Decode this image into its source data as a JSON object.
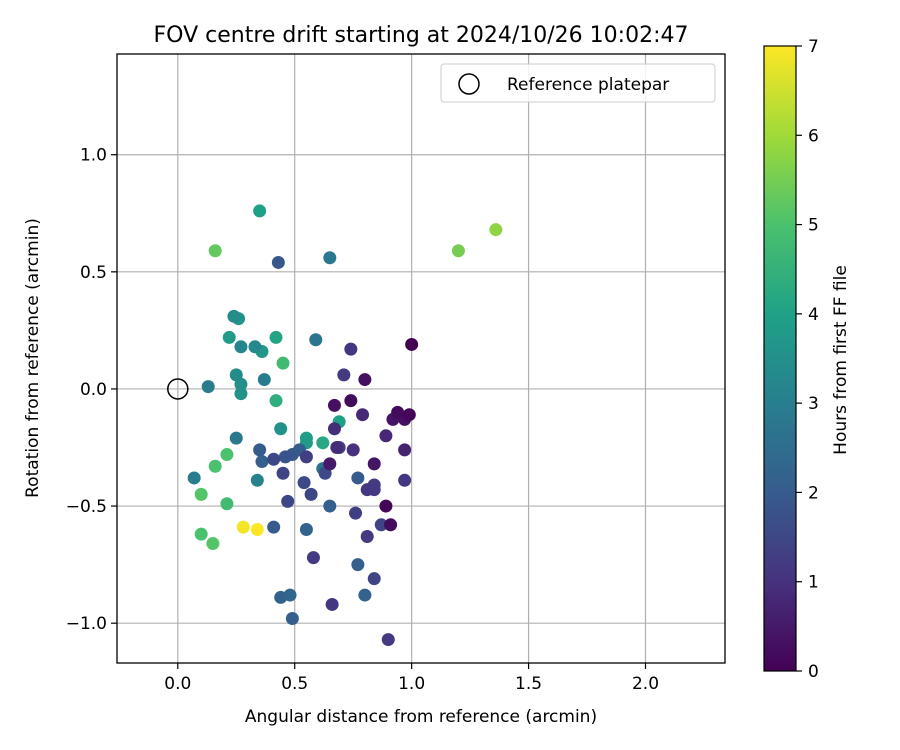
{
  "chart_data": {
    "type": "scatter",
    "title": "FOV centre drift starting at 2024/10/26 10:02:47",
    "xlabel": "Angular distance from reference (arcmin)",
    "ylabel": "Rotation from reference (arcmin)",
    "xlim": [
      -0.26,
      2.34
    ],
    "ylim": [
      -1.17,
      1.43
    ],
    "xticks": [
      0.0,
      0.5,
      1.0,
      1.5,
      2.0
    ],
    "xtick_labels": [
      "0.0",
      "0.5",
      "1.0",
      "1.5",
      "2.0"
    ],
    "yticks": [
      -1.0,
      -0.5,
      0.0,
      0.5,
      1.0
    ],
    "ytick_labels": [
      "−1.0",
      "−0.5",
      "0.0",
      "0.5",
      "1.0"
    ],
    "grid": true,
    "legend": {
      "position": "top-right",
      "entries": [
        {
          "label": "Reference platepar",
          "marker": "open-circle",
          "x": 0.0,
          "y": 0.0
        }
      ]
    },
    "colorbar": {
      "label": "Hours from first FF file",
      "colormap": "viridis",
      "range": [
        0,
        7
      ],
      "ticks": [
        0,
        1,
        2,
        3,
        4,
        5,
        6,
        7
      ],
      "tick_labels": [
        "0",
        "1",
        "2",
        "3",
        "4",
        "5",
        "6",
        "7"
      ]
    },
    "points": [
      {
        "x": 1.0,
        "y": 0.19,
        "c": 0.0
      },
      {
        "x": 0.99,
        "y": -0.11,
        "c": 0.1
      },
      {
        "x": 0.94,
        "y": -0.1,
        "c": 0.2
      },
      {
        "x": 0.97,
        "y": -0.13,
        "c": 0.3
      },
      {
        "x": 0.92,
        "y": -0.13,
        "c": 0.4
      },
      {
        "x": 0.89,
        "y": -0.5,
        "c": 0.1
      },
      {
        "x": 0.91,
        "y": -0.58,
        "c": 0.2
      },
      {
        "x": 0.8,
        "y": 0.04,
        "c": 0.3
      },
      {
        "x": 0.74,
        "y": -0.05,
        "c": 0.2
      },
      {
        "x": 0.67,
        "y": -0.07,
        "c": 0.3
      },
      {
        "x": 0.84,
        "y": -0.32,
        "c": 0.4
      },
      {
        "x": 0.65,
        "y": -0.32,
        "c": 0.5
      },
      {
        "x": 0.97,
        "y": -0.26,
        "c": 0.7
      },
      {
        "x": 0.89,
        "y": -0.2,
        "c": 0.8
      },
      {
        "x": 0.79,
        "y": -0.11,
        "c": 0.8
      },
      {
        "x": 0.67,
        "y": -0.17,
        "c": 0.9
      },
      {
        "x": 0.68,
        "y": -0.25,
        "c": 0.9
      },
      {
        "x": 0.75,
        "y": -0.26,
        "c": 1.0
      },
      {
        "x": 0.74,
        "y": 0.17,
        "c": 1.1
      },
      {
        "x": 0.71,
        "y": 0.06,
        "c": 1.2
      },
      {
        "x": 0.97,
        "y": -0.39,
        "c": 1.1
      },
      {
        "x": 0.84,
        "y": -0.41,
        "c": 1.2
      },
      {
        "x": 0.81,
        "y": -0.43,
        "c": 1.1
      },
      {
        "x": 0.84,
        "y": -0.43,
        "c": 1.2
      },
      {
        "x": 0.87,
        "y": -0.58,
        "c": 1.4
      },
      {
        "x": 0.76,
        "y": -0.53,
        "c": 1.3
      },
      {
        "x": 0.81,
        "y": -0.63,
        "c": 1.2
      },
      {
        "x": 0.84,
        "y": -0.81,
        "c": 1.4
      },
      {
        "x": 0.9,
        "y": -1.07,
        "c": 1.2
      },
      {
        "x": 0.66,
        "y": -0.92,
        "c": 1.1
      },
      {
        "x": 0.58,
        "y": -0.72,
        "c": 1.2
      },
      {
        "x": 0.55,
        "y": -0.29,
        "c": 1.3
      },
      {
        "x": 0.69,
        "y": -0.25,
        "c": 1.4
      },
      {
        "x": 0.57,
        "y": -0.45,
        "c": 1.5
      },
      {
        "x": 0.47,
        "y": -0.48,
        "c": 1.5
      },
      {
        "x": 0.45,
        "y": -0.36,
        "c": 1.4
      },
      {
        "x": 0.41,
        "y": -0.3,
        "c": 1.5
      },
      {
        "x": 0.54,
        "y": -0.4,
        "c": 1.6
      },
      {
        "x": 0.63,
        "y": -0.36,
        "c": 1.6
      },
      {
        "x": 0.46,
        "y": -0.29,
        "c": 1.8
      },
      {
        "x": 0.49,
        "y": -0.28,
        "c": 1.9
      },
      {
        "x": 0.52,
        "y": -0.26,
        "c": 2.0
      },
      {
        "x": 0.43,
        "y": 0.54,
        "c": 1.9
      },
      {
        "x": 0.36,
        "y": -0.31,
        "c": 2.1
      },
      {
        "x": 0.35,
        "y": -0.26,
        "c": 2.0
      },
      {
        "x": 0.77,
        "y": -0.38,
        "c": 2.0
      },
      {
        "x": 0.77,
        "y": -0.75,
        "c": 2.1
      },
      {
        "x": 0.8,
        "y": -0.88,
        "c": 2.2
      },
      {
        "x": 0.65,
        "y": -0.5,
        "c": 2.1
      },
      {
        "x": 0.55,
        "y": -0.6,
        "c": 2.2
      },
      {
        "x": 0.41,
        "y": -0.59,
        "c": 2.0
      },
      {
        "x": 0.44,
        "y": -0.89,
        "c": 2.2
      },
      {
        "x": 0.48,
        "y": -0.88,
        "c": 2.3
      },
      {
        "x": 0.49,
        "y": -0.98,
        "c": 2.1
      },
      {
        "x": 0.62,
        "y": -0.34,
        "c": 2.6
      },
      {
        "x": 0.59,
        "y": 0.21,
        "c": 2.7
      },
      {
        "x": 0.65,
        "y": 0.56,
        "c": 2.8
      },
      {
        "x": 0.37,
        "y": 0.04,
        "c": 2.9
      },
      {
        "x": 0.13,
        "y": 0.01,
        "c": 2.9
      },
      {
        "x": 0.25,
        "y": -0.21,
        "c": 2.8
      },
      {
        "x": 0.07,
        "y": -0.38,
        "c": 2.9
      },
      {
        "x": 0.34,
        "y": -0.39,
        "c": 3.1
      },
      {
        "x": 0.27,
        "y": 0.18,
        "c": 3.2
      },
      {
        "x": 0.33,
        "y": 0.18,
        "c": 3.3
      },
      {
        "x": 0.25,
        "y": 0.06,
        "c": 3.4
      },
      {
        "x": 0.27,
        "y": 0.02,
        "c": 3.5
      },
      {
        "x": 0.24,
        "y": 0.31,
        "c": 3.4
      },
      {
        "x": 0.26,
        "y": 0.3,
        "c": 3.6
      },
      {
        "x": 0.36,
        "y": 0.16,
        "c": 3.7
      },
      {
        "x": 0.27,
        "y": -0.02,
        "c": 3.6
      },
      {
        "x": 0.44,
        "y": -0.17,
        "c": 3.6
      },
      {
        "x": 0.22,
        "y": 0.22,
        "c": 3.8
      },
      {
        "x": 0.55,
        "y": -0.23,
        "c": 3.8
      },
      {
        "x": 0.55,
        "y": -0.21,
        "c": 3.9
      },
      {
        "x": 0.69,
        "y": -0.14,
        "c": 4.0
      },
      {
        "x": 0.62,
        "y": -0.23,
        "c": 4.2
      },
      {
        "x": 0.42,
        "y": 0.22,
        "c": 4.1
      },
      {
        "x": 0.35,
        "y": 0.76,
        "c": 4.0
      },
      {
        "x": 0.42,
        "y": -0.05,
        "c": 4.4
      },
      {
        "x": 0.45,
        "y": 0.11,
        "c": 4.8
      },
      {
        "x": 0.21,
        "y": -0.49,
        "c": 4.8
      },
      {
        "x": 0.21,
        "y": -0.28,
        "c": 5.0
      },
      {
        "x": 0.16,
        "y": -0.33,
        "c": 5.0
      },
      {
        "x": 0.1,
        "y": -0.45,
        "c": 5.1
      },
      {
        "x": 0.1,
        "y": -0.62,
        "c": 5.0
      },
      {
        "x": 0.15,
        "y": -0.66,
        "c": 5.1
      },
      {
        "x": 0.16,
        "y": 0.59,
        "c": 5.3
      },
      {
        "x": 1.2,
        "y": 0.59,
        "c": 5.5
      },
      {
        "x": 1.36,
        "y": 0.68,
        "c": 5.8
      },
      {
        "x": 0.28,
        "y": -0.59,
        "c": 6.9
      },
      {
        "x": 0.34,
        "y": -0.6,
        "c": 7.0
      }
    ]
  }
}
